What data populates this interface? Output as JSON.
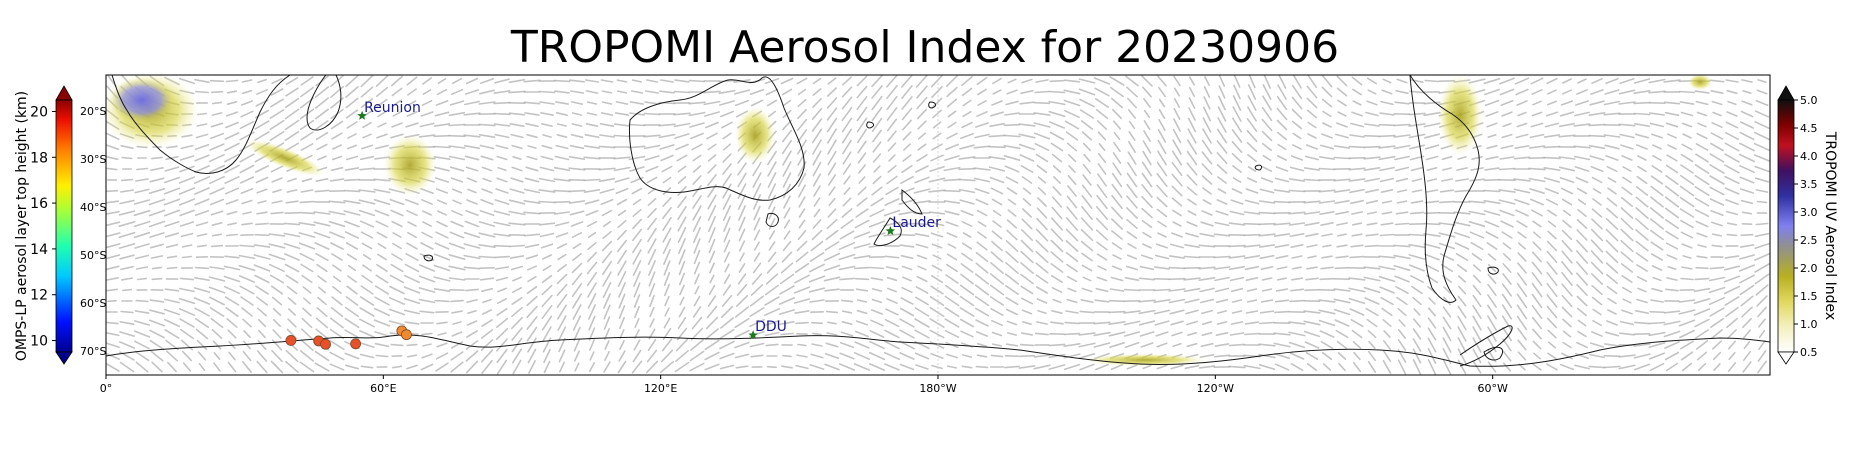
{
  "title": "TROPOMI Aerosol Index for 20230906",
  "map": {
    "lon_ticks": [
      {
        "lon": 0,
        "label": "0°"
      },
      {
        "lon": 60,
        "label": "60°E"
      },
      {
        "lon": 120,
        "label": "120°E"
      },
      {
        "lon": 180,
        "label": "180°W"
      },
      {
        "lon": 240,
        "label": "120°W"
      },
      {
        "lon": 300,
        "label": "60°W"
      }
    ],
    "lat_ticks": [
      {
        "lat": -20,
        "label": "20°S"
      },
      {
        "lat": -30,
        "label": "30°S"
      },
      {
        "lat": -40,
        "label": "40°S"
      },
      {
        "lat": -50,
        "label": "50°S"
      },
      {
        "lat": -60,
        "label": "60°S"
      },
      {
        "lat": -70,
        "label": "70°S"
      }
    ],
    "sites": [
      {
        "name": "Reunion",
        "lon": 55.4,
        "lat": -21.0
      },
      {
        "name": "Lauder",
        "lon": 169.7,
        "lat": -45.0
      },
      {
        "name": "DDU",
        "lon": 140.0,
        "lat": -66.7
      }
    ],
    "omps_points": [
      {
        "lon": 40,
        "lat": -67.8,
        "color": "#e8502a"
      },
      {
        "lon": 46,
        "lat": -67.9,
        "color": "#e8502a"
      },
      {
        "lon": 47.5,
        "lat": -68.6,
        "color": "#e8502a"
      },
      {
        "lon": 54,
        "lat": -68.5,
        "color": "#e8502a"
      },
      {
        "lon": 64,
        "lat": -65.8,
        "color": "#f08a30"
      },
      {
        "lon": 65,
        "lat": -66.6,
        "color": "#f08a30"
      }
    ]
  },
  "colorbar_left": {
    "label": "OMPS-LP aerosol layer top height (km)",
    "ticks": [
      {
        "value": 10,
        "label": "10"
      },
      {
        "value": 12,
        "label": "12"
      },
      {
        "value": 14,
        "label": "14"
      },
      {
        "value": 16,
        "label": "16"
      },
      {
        "value": 18,
        "label": "18"
      },
      {
        "value": 20,
        "label": "20"
      }
    ]
  },
  "colorbar_right": {
    "label": "TROPOMI UV Aerosol Index",
    "ticks": [
      {
        "value": 0.5,
        "label": "0.5"
      },
      {
        "value": 1.0,
        "label": "1.0"
      },
      {
        "value": 1.5,
        "label": "1.5"
      },
      {
        "value": 2.0,
        "label": "2.0"
      },
      {
        "value": 2.5,
        "label": "2.5"
      },
      {
        "value": 3.0,
        "label": "3.0"
      },
      {
        "value": 3.5,
        "label": "3.5"
      },
      {
        "value": 4.0,
        "label": "4.0"
      },
      {
        "value": 4.5,
        "label": "4.5"
      },
      {
        "value": 5.0,
        "label": "5.0"
      }
    ]
  },
  "colors": {
    "coastline": "#1a1a1a",
    "wind_arrows": "#b0b0b0",
    "aerosol_low": "#d6d23a",
    "aerosol_high": "#7070e0",
    "site_marker": "#1f7a1f",
    "site_label": "#1a1a8c"
  }
}
